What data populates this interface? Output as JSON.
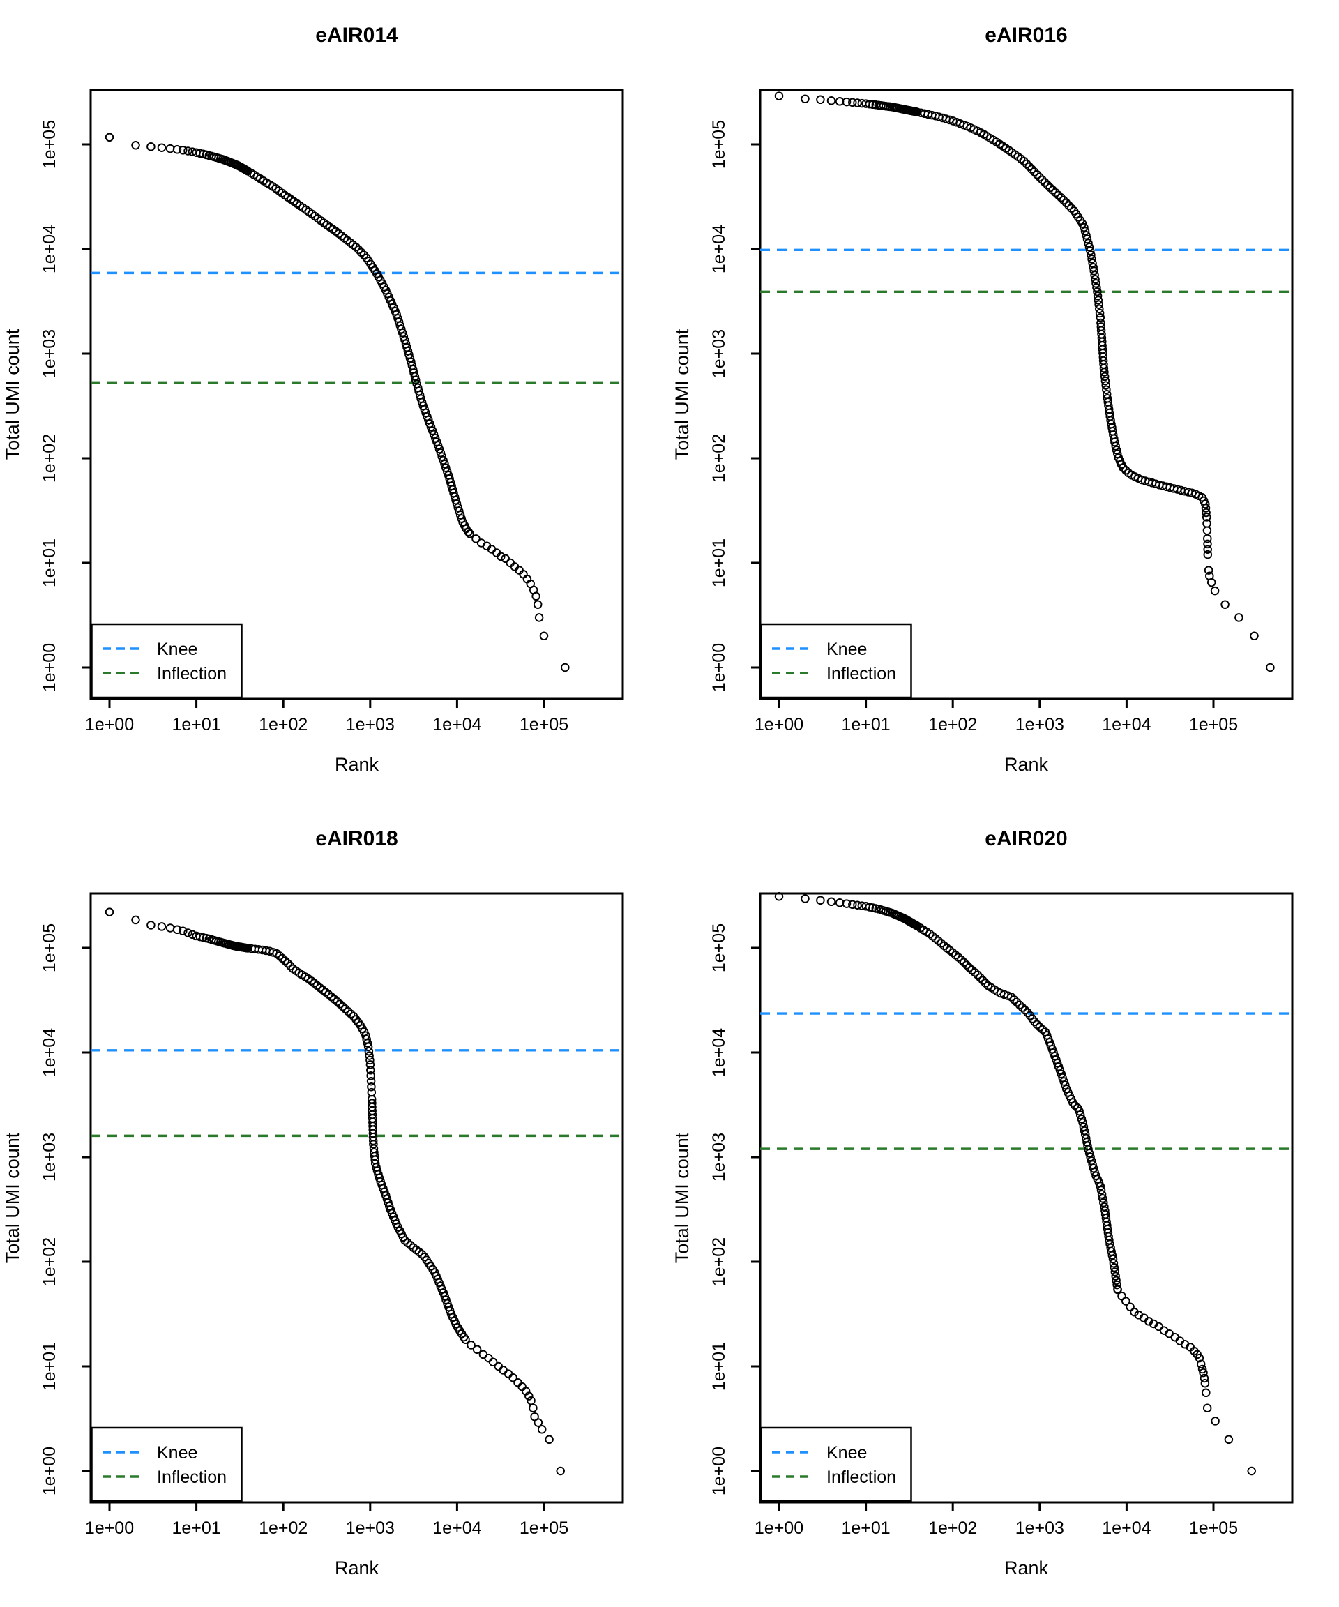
{
  "figure": {
    "background": "#FFFFFF",
    "rows": 2,
    "cols": 2
  },
  "axes": {
    "xlabel": "Rank",
    "ylabel": "Total UMI count",
    "x_tick_labels": [
      "1e+00",
      "1e+01",
      "1e+02",
      "1e+03",
      "1e+04",
      "1e+05"
    ],
    "y_tick_labels": [
      "1e+00",
      "1e+01",
      "1e+02",
      "1e+03",
      "1e+04",
      "1e+05"
    ]
  },
  "legend": {
    "items": [
      {
        "label": "Knee",
        "color": "#1E90FF",
        "style": "dashed"
      },
      {
        "label": "Inflection",
        "color": "#2B7A2B",
        "style": "dashed"
      }
    ]
  },
  "marker": {
    "shape": "open-circle",
    "color": "#000000"
  },
  "chart_data": [
    {
      "type": "scatter",
      "title": "eAIR014",
      "xlabel": "Rank",
      "ylabel": "Total UMI count",
      "x_scale": "log",
      "y_scale": "log",
      "x_range": [
        1,
        800000
      ],
      "y_range": [
        0.6,
        330000
      ],
      "grid": false,
      "legend_position": "bottom-left",
      "knee": 5900,
      "inflection": 530,
      "curve": [
        [
          1,
          117000
        ],
        [
          2,
          98000
        ],
        [
          3,
          95000
        ],
        [
          4,
          93000
        ],
        [
          5,
          91000
        ],
        [
          7,
          88000
        ],
        [
          9,
          85000
        ],
        [
          12,
          81000
        ],
        [
          16,
          76000
        ],
        [
          20,
          72000
        ],
        [
          25,
          67000
        ],
        [
          30,
          63000
        ],
        [
          40,
          55000
        ],
        [
          50,
          49000
        ],
        [
          60,
          44500
        ],
        [
          80,
          38500
        ],
        [
          100,
          33500
        ],
        [
          150,
          26500
        ],
        [
          200,
          22500
        ],
        [
          300,
          17500
        ],
        [
          400,
          14800
        ],
        [
          500,
          12800
        ],
        [
          700,
          10300
        ],
        [
          900,
          8300
        ],
        [
          1180,
          5900
        ],
        [
          1500,
          4100
        ],
        [
          2000,
          2400
        ],
        [
          2500,
          1350
        ],
        [
          3000,
          800
        ],
        [
          3400,
          530
        ],
        [
          4000,
          330
        ],
        [
          5000,
          200
        ],
        [
          6000,
          135
        ],
        [
          8000,
          68
        ],
        [
          10000,
          36
        ],
        [
          11500,
          25
        ],
        [
          12800,
          21
        ],
        [
          14000,
          19
        ]
      ],
      "tail": [
        [
          16500,
          17
        ],
        [
          19000,
          15.5
        ],
        [
          22000,
          14.5
        ],
        [
          25000,
          13.5
        ],
        [
          28500,
          12.5
        ],
        [
          32000,
          11.5
        ],
        [
          36000,
          11
        ],
        [
          41000,
          10
        ],
        [
          46000,
          9.2
        ],
        [
          52000,
          8.5
        ],
        [
          58000,
          7.8
        ],
        [
          64000,
          7
        ],
        [
          70000,
          6.3
        ],
        [
          76000,
          5.5
        ],
        [
          81000,
          4.8
        ],
        [
          85000,
          4
        ],
        [
          88000,
          3
        ],
        [
          100000,
          2
        ],
        [
          175000,
          1
        ]
      ]
    },
    {
      "type": "scatter",
      "title": "eAIR016",
      "xlabel": "Rank",
      "ylabel": "Total UMI count",
      "x_scale": "log",
      "y_scale": "log",
      "x_range": [
        1,
        800000
      ],
      "y_range": [
        0.6,
        330000
      ],
      "grid": false,
      "legend_position": "bottom-left",
      "knee": 9800,
      "inflection": 3900,
      "curve": [
        [
          1,
          290000
        ],
        [
          2,
          272000
        ],
        [
          3,
          268000
        ],
        [
          4,
          262000
        ],
        [
          5,
          258000
        ],
        [
          7,
          252000
        ],
        [
          10,
          245000
        ],
        [
          14,
          237000
        ],
        [
          20,
          228000
        ],
        [
          30,
          213000
        ],
        [
          45,
          199000
        ],
        [
          65,
          186000
        ],
        [
          100,
          168000
        ],
        [
          150,
          148000
        ],
        [
          220,
          127000
        ],
        [
          320,
          105000
        ],
        [
          450,
          87000
        ],
        [
          650,
          70000
        ],
        [
          900,
          53000
        ],
        [
          1300,
          39000
        ],
        [
          1800,
          30500
        ],
        [
          2500,
          23000
        ],
        [
          3200,
          16800
        ],
        [
          3800,
          9800
        ],
        [
          4200,
          6300
        ],
        [
          4600,
          3900
        ],
        [
          5000,
          2200
        ],
        [
          5500,
          700
        ],
        [
          6000,
          380
        ],
        [
          6500,
          240
        ],
        [
          7200,
          150
        ],
        [
          8000,
          103
        ],
        [
          9000,
          82
        ],
        [
          11000,
          70
        ],
        [
          15000,
          62
        ],
        [
          25000,
          55
        ],
        [
          40000,
          50
        ],
        [
          60000,
          46
        ],
        [
          75000,
          42
        ],
        [
          81000,
          36
        ],
        [
          83500,
          27
        ],
        [
          85000,
          18
        ],
        [
          86000,
          12
        ]
      ],
      "tail": [
        [
          88000,
          8.5
        ],
        [
          90000,
          7.5
        ],
        [
          95000,
          6.5
        ],
        [
          104000,
          5.4
        ],
        [
          136000,
          4
        ],
        [
          196000,
          3
        ],
        [
          295000,
          2
        ],
        [
          450000,
          1
        ]
      ]
    },
    {
      "type": "scatter",
      "title": "eAIR018",
      "xlabel": "Rank",
      "ylabel": "Total UMI count",
      "x_scale": "log",
      "y_scale": "log",
      "x_range": [
        1,
        800000
      ],
      "y_range": [
        0.6,
        330000
      ],
      "grid": false,
      "legend_position": "bottom-left",
      "knee": 10500,
      "inflection": 1600,
      "curve": [
        [
          1,
          220000
        ],
        [
          2,
          185000
        ],
        [
          3,
          165000
        ],
        [
          4,
          160000
        ],
        [
          5,
          155000
        ],
        [
          7,
          145000
        ],
        [
          10,
          130000
        ],
        [
          14,
          122000
        ],
        [
          20,
          112000
        ],
        [
          28,
          104000
        ],
        [
          40,
          99000
        ],
        [
          55,
          96000
        ],
        [
          70,
          93000
        ],
        [
          85,
          88000
        ],
        [
          100,
          78000
        ],
        [
          115,
          70000
        ],
        [
          130,
          63000
        ],
        [
          160,
          56000
        ],
        [
          200,
          50000
        ],
        [
          260,
          42000
        ],
        [
          330,
          36000
        ],
        [
          420,
          30500
        ],
        [
          520,
          26000
        ],
        [
          650,
          22000
        ],
        [
          780,
          18000
        ],
        [
          880,
          15000
        ],
        [
          950,
          11500
        ],
        [
          1000,
          8000
        ],
        [
          1040,
          4000
        ],
        [
          1070,
          2000
        ],
        [
          1090,
          1300
        ],
        [
          1150,
          850
        ],
        [
          1300,
          600
        ],
        [
          1500,
          440
        ],
        [
          1700,
          320
        ],
        [
          2000,
          230
        ],
        [
          2500,
          160
        ],
        [
          3200,
          135
        ],
        [
          4100,
          115
        ],
        [
          5500,
          80
        ],
        [
          7000,
          50
        ],
        [
          8500,
          32
        ],
        [
          10000,
          24
        ],
        [
          12500,
          18
        ]
      ],
      "tail": [
        [
          14500,
          16
        ],
        [
          17000,
          14.5
        ],
        [
          20000,
          13
        ],
        [
          23000,
          12
        ],
        [
          26000,
          11
        ],
        [
          30000,
          10
        ],
        [
          34000,
          9.2
        ],
        [
          39000,
          8.5
        ],
        [
          44000,
          7.8
        ],
        [
          50000,
          7
        ],
        [
          56000,
          6.4
        ],
        [
          62000,
          5.8
        ],
        [
          67000,
          5.2
        ],
        [
          71000,
          4.7
        ],
        [
          75000,
          4
        ],
        [
          78000,
          3.3
        ],
        [
          86000,
          2.9
        ],
        [
          95000,
          2.5
        ],
        [
          115000,
          2
        ],
        [
          155000,
          1
        ]
      ]
    },
    {
      "type": "scatter",
      "title": "eAIR020",
      "xlabel": "Rank",
      "ylabel": "Total UMI count",
      "x_scale": "log",
      "y_scale": "log",
      "x_range": [
        1,
        800000
      ],
      "y_range": [
        0.6,
        330000
      ],
      "grid": false,
      "legend_position": "bottom-left",
      "knee": 23600,
      "inflection": 1200,
      "curve": [
        [
          1,
          310000
        ],
        [
          2,
          295000
        ],
        [
          3,
          285000
        ],
        [
          5,
          270000
        ],
        [
          7,
          260000
        ],
        [
          10,
          250000
        ],
        [
          14,
          235000
        ],
        [
          20,
          215000
        ],
        [
          28,
          190000
        ],
        [
          40,
          160000
        ],
        [
          55,
          135000
        ],
        [
          70,
          115000
        ],
        [
          85,
          100000
        ],
        [
          100,
          90000
        ],
        [
          130,
          75000
        ],
        [
          160,
          63000
        ],
        [
          190,
          56000
        ],
        [
          250,
          44000
        ],
        [
          350,
          37000
        ],
        [
          470,
          34000
        ],
        [
          600,
          28000
        ],
        [
          745,
          23600
        ],
        [
          900,
          19000
        ],
        [
          1180,
          15500
        ],
        [
          1420,
          10300
        ],
        [
          1700,
          6900
        ],
        [
          2050,
          4400
        ],
        [
          2460,
          3200
        ],
        [
          2800,
          2900
        ],
        [
          3150,
          2100
        ],
        [
          3620,
          1200
        ],
        [
          4350,
          690
        ],
        [
          4970,
          540
        ],
        [
          5600,
          320
        ],
        [
          6300,
          160
        ],
        [
          7000,
          105
        ],
        [
          7900,
          54
        ]
      ],
      "tail": [
        [
          8800,
          47
        ],
        [
          9800,
          42
        ],
        [
          11000,
          37
        ],
        [
          12300,
          33
        ],
        [
          13800,
          31
        ],
        [
          15800,
          29
        ],
        [
          18000,
          27
        ],
        [
          20500,
          25.5
        ],
        [
          23500,
          24
        ],
        [
          27000,
          22
        ],
        [
          31000,
          20.5
        ],
        [
          36000,
          19
        ],
        [
          41000,
          17.5
        ],
        [
          47000,
          16.3
        ],
        [
          54000,
          15.3
        ],
        [
          60000,
          14
        ],
        [
          65000,
          13
        ],
        [
          69000,
          12
        ],
        [
          72000,
          10.5
        ],
        [
          74500,
          9.4
        ],
        [
          76500,
          8.7
        ],
        [
          78500,
          7.7
        ],
        [
          80000,
          6.9
        ],
        [
          82000,
          5.6
        ],
        [
          85000,
          4
        ],
        [
          105000,
          3
        ],
        [
          150000,
          2
        ],
        [
          275000,
          1
        ]
      ]
    }
  ]
}
